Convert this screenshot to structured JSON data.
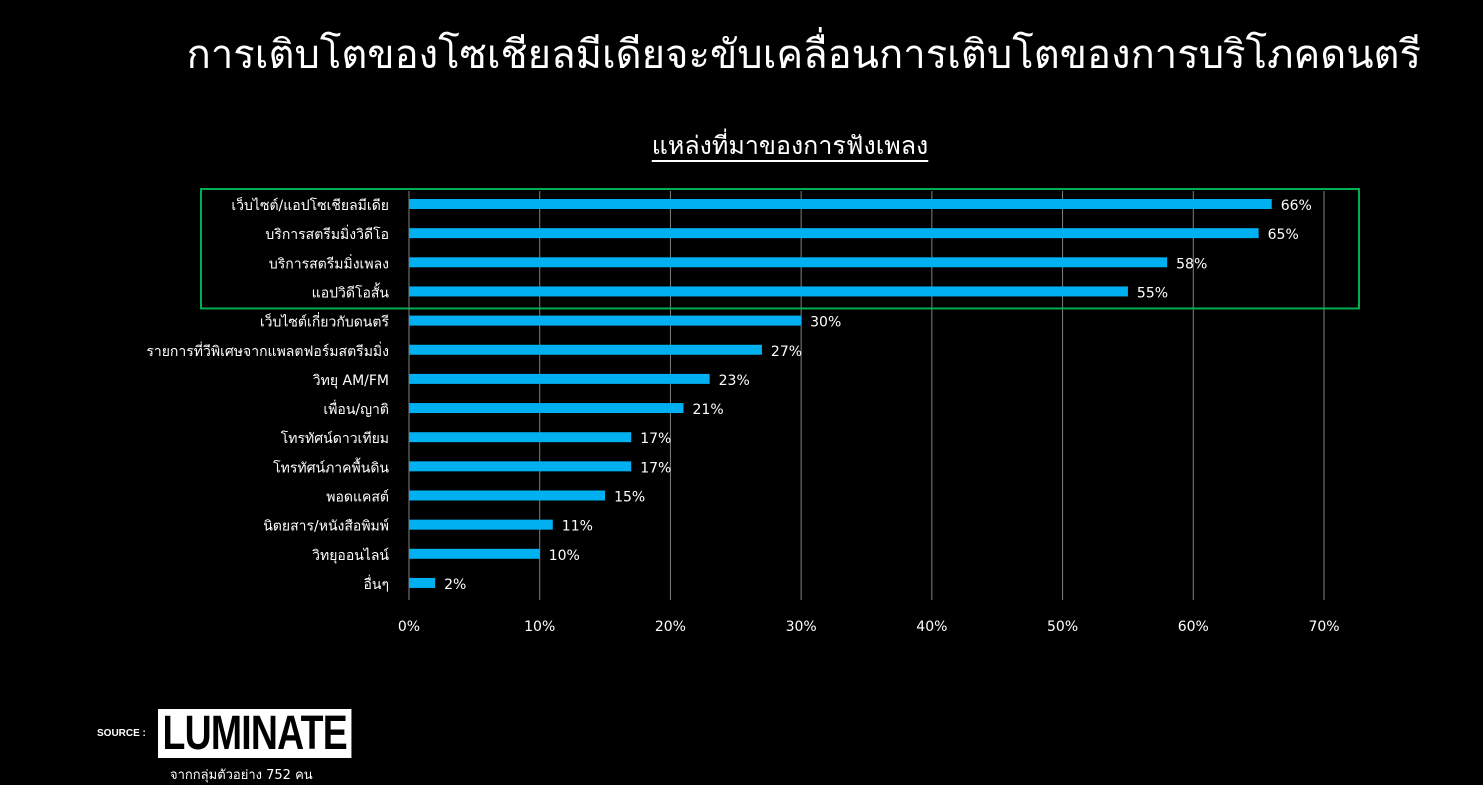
{
  "page": {
    "title": "การเติบโตของโซเชียลมีเดียจะขับเคลื่อนการเติบโตของการบริโภคดนตรี"
  },
  "chart_data": {
    "type": "bar",
    "orientation": "horizontal",
    "title": "แหล่งที่มาของการฟังเพลง",
    "categories": [
      "เว็บไซต์/แอปโซเชียลมีเดีย",
      "บริการสตรีมมิ่งวิดีโอ",
      "บริการสตรีมมิ่งเพลง",
      "แอปวิดีโอสั้น",
      "เว็บไซต์เกี่ยวกับดนตรี",
      "รายการที่วีพิเศษจากแพลตฟอร์มสตรีมมิ่ง",
      "วิทยุ AM/FM",
      "เพื่อน/ญาติ",
      "โทรทัศน์ดาวเทียม",
      "โทรทัศน์ภาคพื้นดิน",
      "พอดแคสต์",
      "นิตยสาร/หนังสือพิมพ์",
      "วิทยุออนไลน์",
      "อื่นๆ"
    ],
    "values": [
      66,
      65,
      58,
      55,
      30,
      27,
      23,
      21,
      17,
      17,
      15,
      11,
      10,
      2
    ],
    "value_labels": [
      "66%",
      "65%",
      "58%",
      "55%",
      "30%",
      "27%",
      "23%",
      "21%",
      "17%",
      "17%",
      "15%",
      "11%",
      "10%",
      "2%"
    ],
    "xlim": [
      0,
      70
    ],
    "xticks": [
      0,
      10,
      20,
      30,
      40,
      50,
      60,
      70
    ],
    "xtick_labels": [
      "0%",
      "10%",
      "20%",
      "30%",
      "40%",
      "50%",
      "60%",
      "70%"
    ],
    "grid": "vertical",
    "highlighted_categories": 4,
    "bar_color": "#00B0F0",
    "highlight_box_color": "#00B050",
    "background_color": "#000000",
    "text_color": "#FFFFFF",
    "gridline_color": "#7F7F7F"
  },
  "source": {
    "label": "SOURCE :",
    "brand": "LUMINATE",
    "note": "จากกลุ่มตัวอย่าง 752 คน"
  }
}
